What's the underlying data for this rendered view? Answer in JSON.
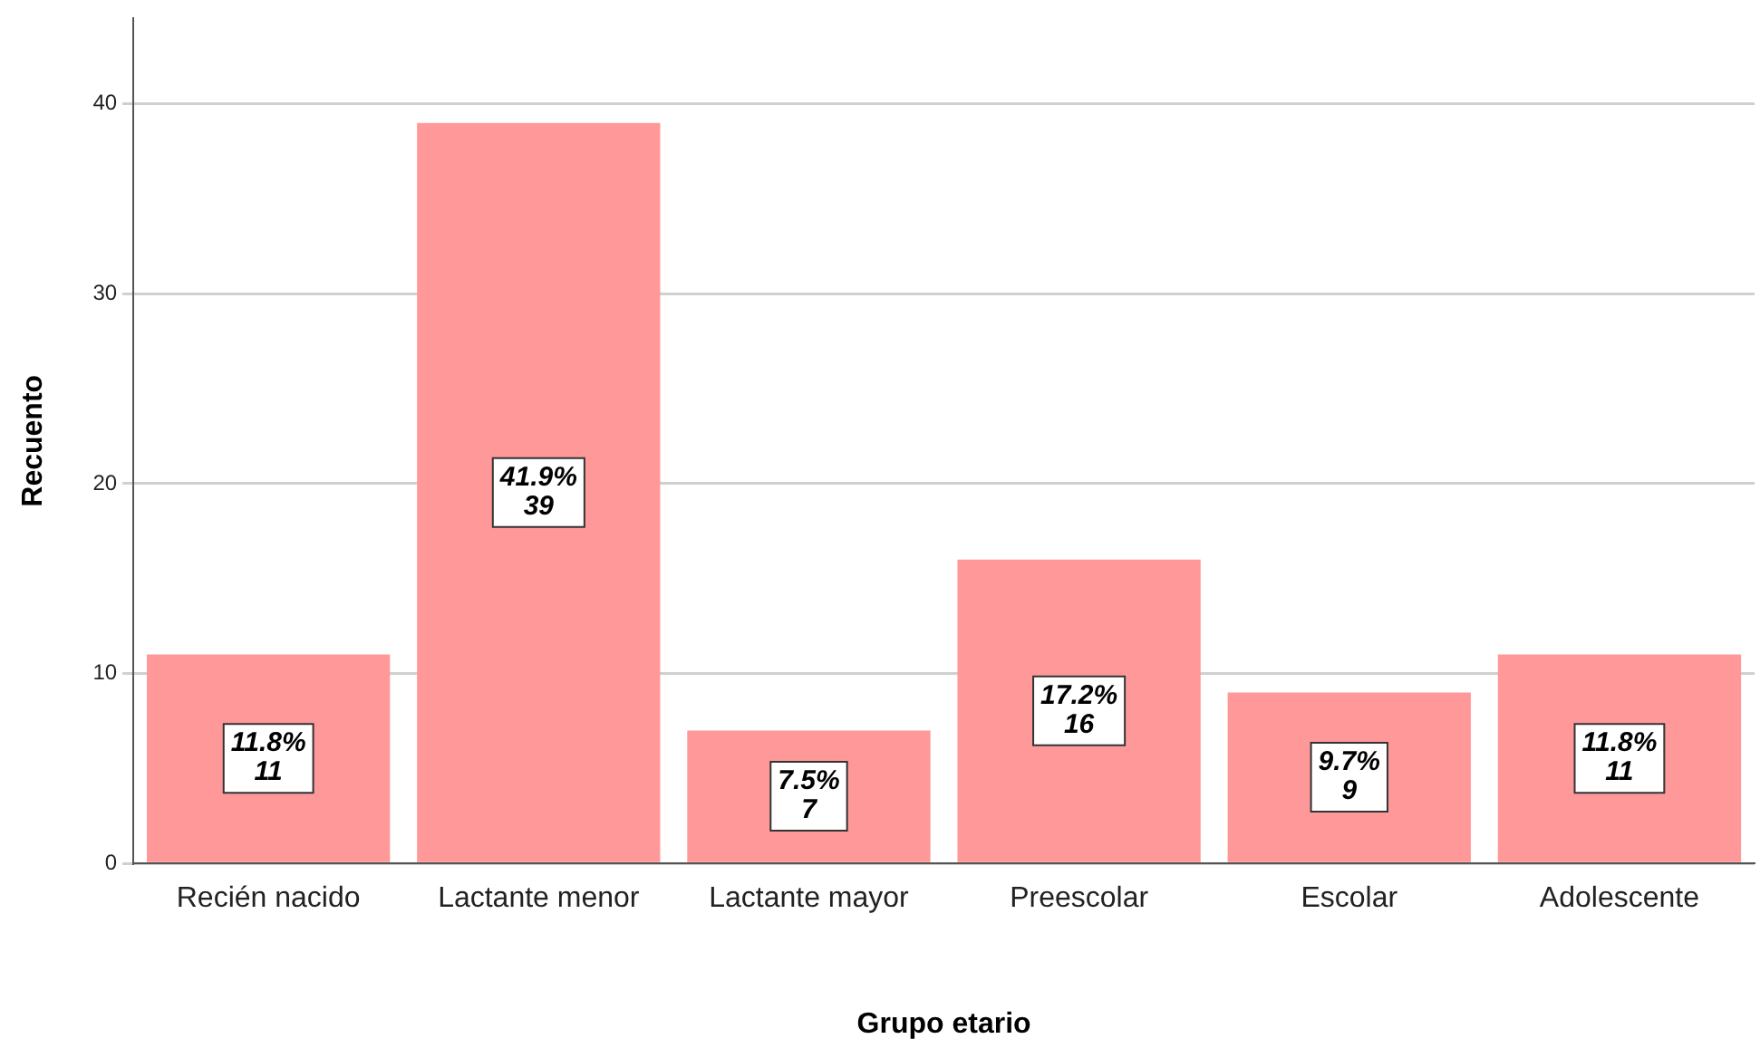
{
  "chart_data": {
    "type": "bar",
    "xlabel": "Grupo etario",
    "ylabel": "Recuento",
    "categories": [
      "Recién nacido",
      "Lactante menor",
      "Lactante mayor",
      "Preescolar",
      "Escolar",
      "Adolescente"
    ],
    "values": [
      11,
      39,
      7,
      16,
      9,
      11
    ],
    "color": "#ff9999",
    "value_labels": [
      "11.8%\n11",
      "41.9%\n39",
      "7.5%\n7",
      "17.2%\n16",
      "9.7%\n9",
      "11.8%\n11"
    ],
    "ylim": [
      0,
      44.5
    ],
    "yticks": [
      0,
      10,
      20,
      30,
      40
    ],
    "grid": "y",
    "legend": false
  }
}
